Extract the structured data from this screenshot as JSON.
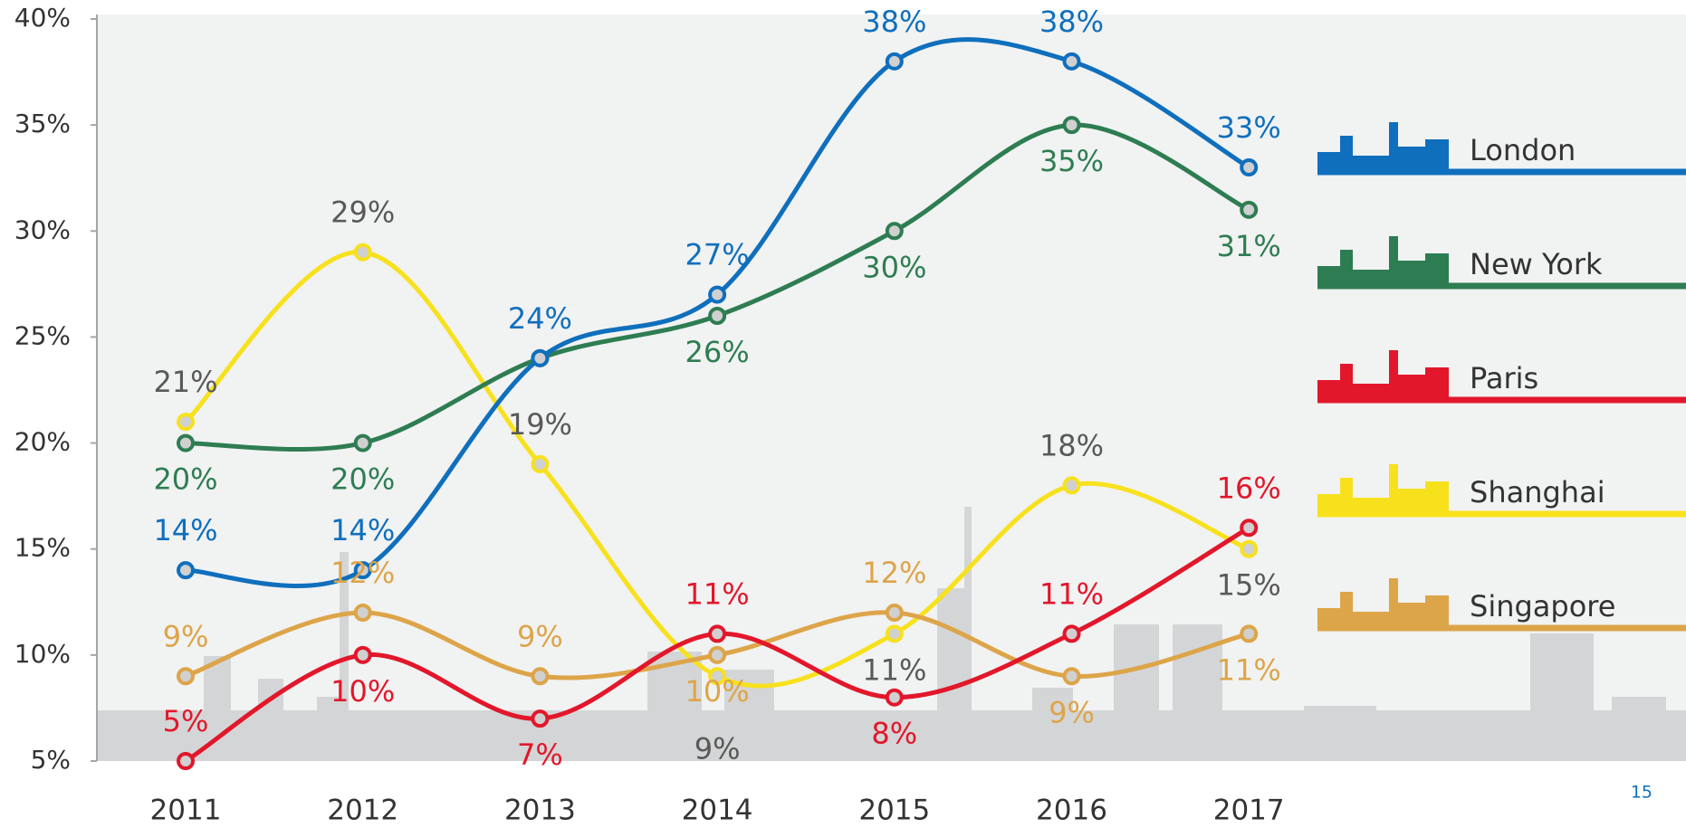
{
  "chart_data": {
    "type": "line",
    "categories": [
      "2011",
      "2012",
      "2013",
      "2014",
      "2015",
      "2016",
      "2017"
    ],
    "ylim": [
      5,
      40
    ],
    "yticks": [
      {
        "value": 5,
        "label": "5%"
      },
      {
        "value": 10,
        "label": "10%"
      },
      {
        "value": 15,
        "label": "15%"
      },
      {
        "value": 20,
        "label": "20%"
      },
      {
        "value": 25,
        "label": "25%"
      },
      {
        "value": 30,
        "label": "30%"
      },
      {
        "value": 35,
        "label": "35%"
      },
      {
        "value": 40,
        "label": "40%"
      }
    ],
    "grid": false,
    "series": [
      {
        "name": "London",
        "color": "#0f6fbd",
        "label_color": "#0f6fbd",
        "values": [
          14,
          14,
          24,
          27,
          38,
          38,
          33
        ],
        "value_labels": [
          "14%",
          "14%",
          "24%",
          "27%",
          "38%",
          "38%",
          "33%"
        ]
      },
      {
        "name": "New York",
        "color": "#2e7d52",
        "label_color": "#2e7d52",
        "values": [
          20,
          20,
          24,
          26,
          30,
          35,
          31
        ],
        "value_labels": [
          "20%",
          "20%",
          null,
          "26%",
          "30%",
          "35%",
          "31%"
        ]
      },
      {
        "name": "Paris",
        "color": "#e2172b",
        "label_color": "#e2172b",
        "values": [
          5,
          10,
          7,
          11,
          8,
          11,
          16
        ],
        "value_labels": [
          "5%",
          "10%",
          "7%",
          "11%",
          "8%",
          "11%",
          "16%"
        ]
      },
      {
        "name": "Shanghai",
        "color": "#f7e11d",
        "label_color": "#595959",
        "values": [
          21,
          29,
          19,
          9,
          11,
          18,
          15
        ],
        "value_labels": [
          "21%",
          "29%",
          "19%",
          "9%",
          "11%",
          "18%",
          "15%"
        ]
      },
      {
        "name": "Singapore",
        "color": "#dda549",
        "label_color": "#dda549",
        "values": [
          9,
          12,
          9,
          10,
          12,
          9,
          11
        ],
        "value_labels": [
          "9%",
          "12%",
          "9%",
          "10%",
          "12%",
          "9%",
          "11%"
        ]
      }
    ],
    "legend_position": "right"
  },
  "page_number": "15"
}
